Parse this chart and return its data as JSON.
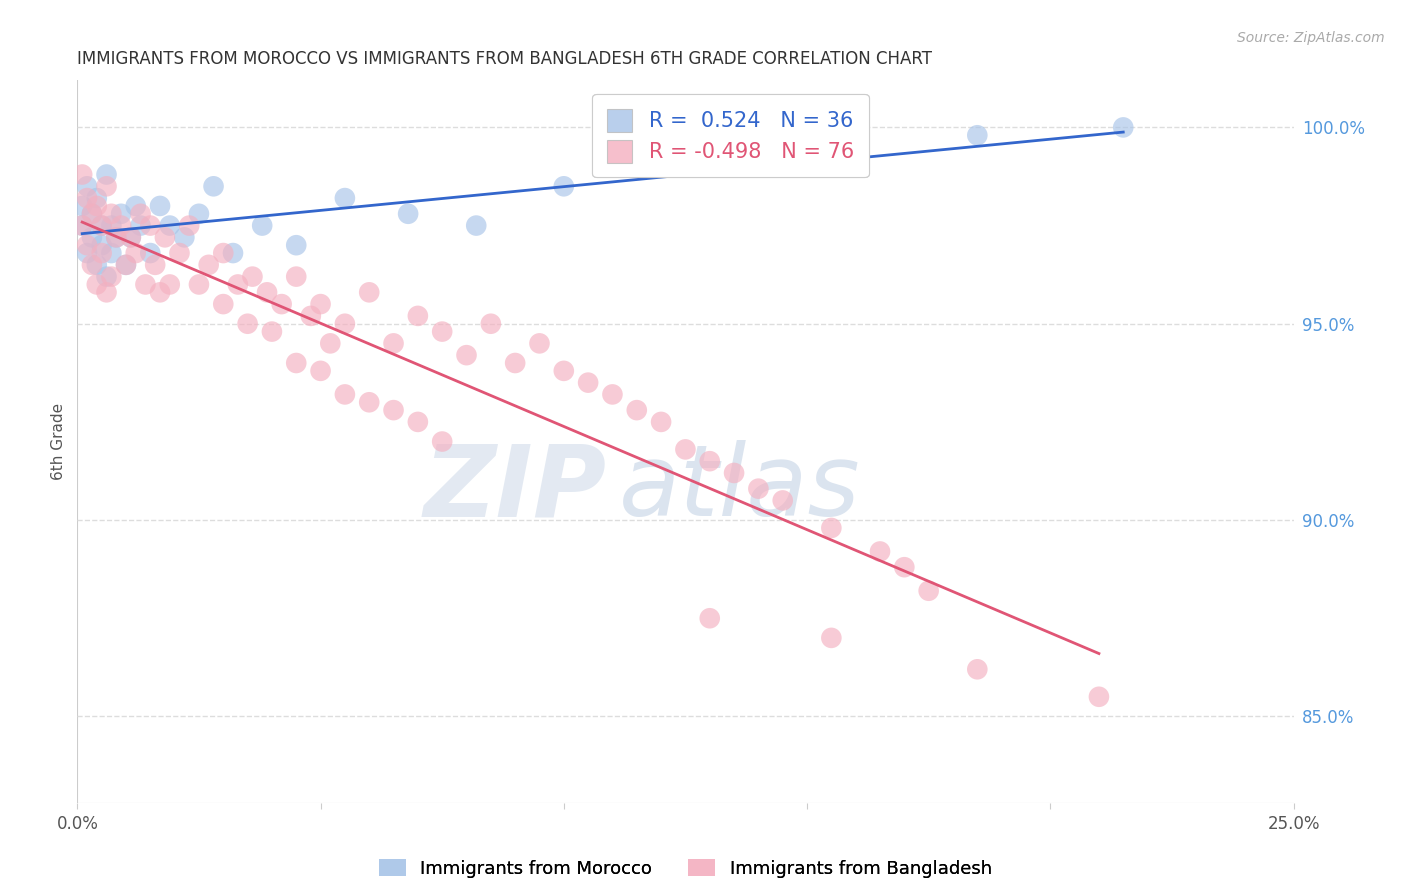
{
  "title": "IMMIGRANTS FROM MOROCCO VS IMMIGRANTS FROM BANGLADESH 6TH GRADE CORRELATION CHART",
  "source": "Source: ZipAtlas.com",
  "ylabel": "6th Grade",
  "xlim": [
    0.0,
    0.25
  ],
  "ylim": [
    0.828,
    1.012
  ],
  "morocco_color": "#a8c4e8",
  "bangladesh_color": "#f4b0c0",
  "morocco_line_color": "#3366cc",
  "bangladesh_line_color": "#e05575",
  "legend_morocco_label": "Immigrants from Morocco",
  "legend_bangladesh_label": "Immigrants from Bangladesh",
  "r_morocco": "0.524",
  "n_morocco": "36",
  "r_bangladesh": "-0.498",
  "n_bangladesh": "76",
  "watermark_zip": "ZIP",
  "watermark_atlas": "atlas",
  "grid_yticks": [
    0.85,
    0.9,
    0.95,
    1.0
  ],
  "grid_yticklabels": [
    "85.0%",
    "90.0%",
    "95.0%",
    "100.0%"
  ],
  "morocco_scatter_x": [
    0.001,
    0.001,
    0.002,
    0.002,
    0.003,
    0.003,
    0.004,
    0.004,
    0.005,
    0.005,
    0.006,
    0.006,
    0.007,
    0.007,
    0.008,
    0.009,
    0.01,
    0.011,
    0.012,
    0.013,
    0.015,
    0.017,
    0.019,
    0.022,
    0.025,
    0.028,
    0.032,
    0.038,
    0.045,
    0.055,
    0.068,
    0.082,
    0.1,
    0.13,
    0.185,
    0.215
  ],
  "morocco_scatter_y": [
    0.98,
    0.975,
    0.985,
    0.968,
    0.978,
    0.972,
    0.982,
    0.965,
    0.975,
    0.97,
    0.988,
    0.962,
    0.975,
    0.968,
    0.972,
    0.978,
    0.965,
    0.972,
    0.98,
    0.975,
    0.968,
    0.98,
    0.975,
    0.972,
    0.978,
    0.985,
    0.968,
    0.975,
    0.97,
    0.982,
    0.978,
    0.975,
    0.985,
    0.992,
    0.998,
    1.0
  ],
  "bangladesh_scatter_x": [
    0.001,
    0.001,
    0.002,
    0.002,
    0.003,
    0.003,
    0.004,
    0.004,
    0.005,
    0.005,
    0.006,
    0.006,
    0.007,
    0.007,
    0.008,
    0.009,
    0.01,
    0.011,
    0.012,
    0.013,
    0.014,
    0.015,
    0.016,
    0.017,
    0.018,
    0.019,
    0.021,
    0.023,
    0.025,
    0.027,
    0.03,
    0.033,
    0.036,
    0.039,
    0.042,
    0.045,
    0.05,
    0.055,
    0.06,
    0.065,
    0.07,
    0.075,
    0.08,
    0.085,
    0.09,
    0.095,
    0.1,
    0.105,
    0.11,
    0.115,
    0.03,
    0.035,
    0.04,
    0.045,
    0.05,
    0.055,
    0.06,
    0.065,
    0.07,
    0.075,
    0.12,
    0.125,
    0.13,
    0.135,
    0.14,
    0.145,
    0.155,
    0.165,
    0.17,
    0.175,
    0.048,
    0.052,
    0.13,
    0.155,
    0.185,
    0.21
  ],
  "bangladesh_scatter_y": [
    0.988,
    0.975,
    0.982,
    0.97,
    0.978,
    0.965,
    0.98,
    0.96,
    0.975,
    0.968,
    0.985,
    0.958,
    0.978,
    0.962,
    0.972,
    0.975,
    0.965,
    0.972,
    0.968,
    0.978,
    0.96,
    0.975,
    0.965,
    0.958,
    0.972,
    0.96,
    0.968,
    0.975,
    0.96,
    0.965,
    0.968,
    0.96,
    0.962,
    0.958,
    0.955,
    0.962,
    0.955,
    0.95,
    0.958,
    0.945,
    0.952,
    0.948,
    0.942,
    0.95,
    0.94,
    0.945,
    0.938,
    0.935,
    0.932,
    0.928,
    0.955,
    0.95,
    0.948,
    0.94,
    0.938,
    0.932,
    0.93,
    0.928,
    0.925,
    0.92,
    0.925,
    0.918,
    0.915,
    0.912,
    0.908,
    0.905,
    0.898,
    0.892,
    0.888,
    0.882,
    0.952,
    0.945,
    0.875,
    0.87,
    0.862,
    0.855
  ]
}
